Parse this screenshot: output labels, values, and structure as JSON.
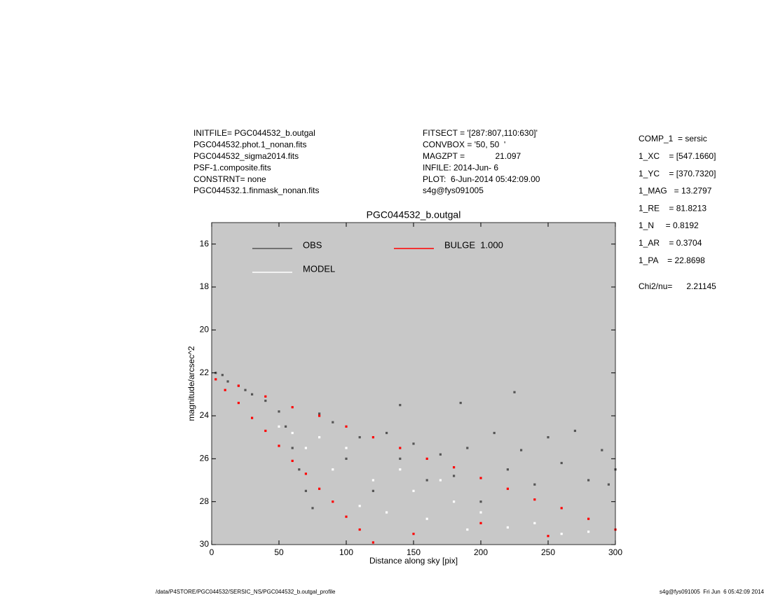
{
  "chart_data": {
    "type": "scatter",
    "title": "PGC044532_b.outgal",
    "xlabel": "Distance along sky [pix]",
    "ylabel": "magnitude/arcsec^2",
    "xlim": [
      0,
      300
    ],
    "ylim": [
      30,
      15
    ],
    "xticks": [
      0,
      50,
      100,
      150,
      200,
      250,
      300
    ],
    "yticks": [
      16,
      18,
      20,
      22,
      24,
      26,
      28,
      30
    ],
    "plot_background": "#c8c8c8",
    "info_left": [
      "INITFILE= PGC044532_b.outgal",
      "PGC044532.phot.1_nonan.fits",
      "PGC044532_sigma2014.fits",
      "PSF-1.composite.fits",
      "CONSTRNT= none",
      "PGC044532.1.finmask_nonan.fits"
    ],
    "info_middle": [
      "FITSECT = '[287:807,110:630]'",
      "CONVBOX = '50, 50  '",
      "MAGZPT =             21.097",
      "INFILE: 2014-Jun- 6",
      "PLOT:  6-Jun-2014 05:42:09.00",
      "s4g@fys091005"
    ],
    "params": [
      "COMP_1  = sersic",
      "1_XC    = [547.1660]",
      "1_YC    = [370.7320]",
      "1_MAG   = 13.2797",
      "1_RE    = 81.8213",
      "1_N     = 0.8192",
      "1_AR    = 0.3704",
      "1_PA    = 22.8698"
    ],
    "chi2": "Chi2/nu=      2.21145",
    "footer_left": "/data/P4STORE/PGC044532/SERSIC_NS/PGC044532_b.outgal_profile",
    "footer_right": "s4g@fys091005  Fri Jun  6 05:42:09 2014",
    "series": [
      {
        "name": "OBS",
        "color": "#555555",
        "x": [
          3,
          8,
          12,
          20,
          30,
          25,
          40,
          50,
          55,
          60,
          65,
          70,
          75,
          80,
          90,
          100,
          110,
          120,
          130,
          140,
          150,
          160,
          170,
          180,
          190,
          200,
          210,
          220,
          230,
          240,
          250,
          260,
          270,
          280,
          290,
          300,
          225,
          185,
          140,
          295
        ],
        "values": [
          22.0,
          22.1,
          22.4,
          22.6,
          23.0,
          22.8,
          23.3,
          23.8,
          24.5,
          25.5,
          26.5,
          27.5,
          28.3,
          23.9,
          24.3,
          26.0,
          25.0,
          27.5,
          24.8,
          26.0,
          25.3,
          27.0,
          25.8,
          26.8,
          25.5,
          28.0,
          24.8,
          26.5,
          25.6,
          27.2,
          25.0,
          26.2,
          24.7,
          27.0,
          25.6,
          26.5,
          22.9,
          23.4,
          23.5,
          27.2
        ]
      },
      {
        "name": "MODEL",
        "color": "#ffffff",
        "x": [
          50,
          70,
          90,
          100,
          120,
          130,
          150,
          160,
          180,
          200,
          220,
          240,
          260,
          280,
          110,
          140,
          80,
          60,
          170,
          190
        ],
        "values": [
          24.5,
          25.5,
          26.5,
          25.5,
          27.0,
          28.5,
          27.5,
          28.8,
          28.0,
          28.5,
          29.2,
          29.0,
          29.5,
          29.4,
          28.2,
          26.5,
          25.0,
          24.8,
          27.0,
          29.3
        ]
      },
      {
        "name": "BULGE  1.000",
        "color": "#ff0000",
        "x": [
          3,
          10,
          20,
          30,
          40,
          50,
          60,
          70,
          80,
          90,
          100,
          110,
          120,
          20,
          40,
          60,
          80,
          100,
          120,
          140,
          160,
          180,
          200,
          220,
          240,
          260,
          280,
          300,
          150,
          200,
          250
        ],
        "values": [
          22.3,
          22.8,
          23.4,
          24.1,
          24.7,
          25.4,
          26.1,
          26.7,
          27.4,
          28.0,
          28.7,
          29.3,
          29.9,
          22.6,
          23.1,
          23.6,
          24.0,
          24.5,
          25.0,
          25.5,
          26.0,
          26.4,
          26.9,
          27.4,
          27.9,
          28.3,
          28.8,
          29.3,
          29.5,
          29.0,
          29.6
        ]
      }
    ]
  }
}
